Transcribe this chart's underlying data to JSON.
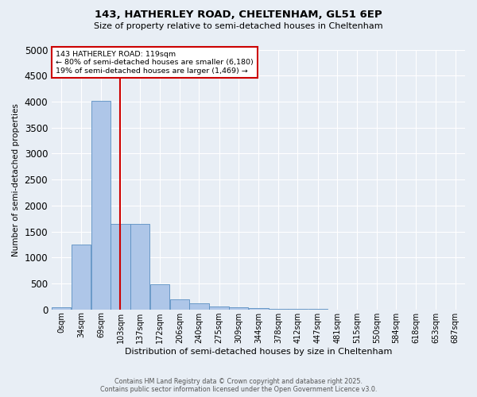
{
  "title_line1": "143, HATHERLEY ROAD, CHELTENHAM, GL51 6EP",
  "title_line2": "Size of property relative to semi-detached houses in Cheltenham",
  "xlabel": "Distribution of semi-detached houses by size in Cheltenham",
  "ylabel": "Number of semi-detached properties",
  "bin_labels": [
    "0sqm",
    "34sqm",
    "69sqm",
    "103sqm",
    "137sqm",
    "172sqm",
    "206sqm",
    "240sqm",
    "275sqm",
    "309sqm",
    "344sqm",
    "378sqm",
    "412sqm",
    "447sqm",
    "481sqm",
    "515sqm",
    "550sqm",
    "584sqm",
    "618sqm",
    "653sqm",
    "687sqm"
  ],
  "bin_edges": [
    0,
    34,
    69,
    103,
    137,
    172,
    206,
    240,
    275,
    309,
    344,
    378,
    412,
    447,
    481,
    515,
    550,
    584,
    618,
    653,
    687
  ],
  "bar_heights": [
    40,
    1250,
    4020,
    1640,
    1640,
    480,
    195,
    115,
    60,
    35,
    20,
    10,
    5,
    3,
    2,
    1,
    1,
    0,
    0,
    0
  ],
  "bar_color": "#aec6e8",
  "bar_edge_color": "#5a8fc2",
  "property_line_x": 119,
  "property_line_color": "#cc0000",
  "ylim": [
    0,
    5000
  ],
  "yticks": [
    0,
    500,
    1000,
    1500,
    2000,
    2500,
    3000,
    3500,
    4000,
    4500,
    5000
  ],
  "annotation_title": "143 HATHERLEY ROAD: 119sqm",
  "annotation_line1": "← 80% of semi-detached houses are smaller (6,180)",
  "annotation_line2": "19% of semi-detached houses are larger (1,469) →",
  "annotation_box_color": "#cc0000",
  "footer_line1": "Contains HM Land Registry data © Crown copyright and database right 2025.",
  "footer_line2": "Contains public sector information licensed under the Open Government Licence v3.0.",
  "background_color": "#e8eef5",
  "plot_background": "#e8eef5",
  "grid_color": "#ffffff"
}
